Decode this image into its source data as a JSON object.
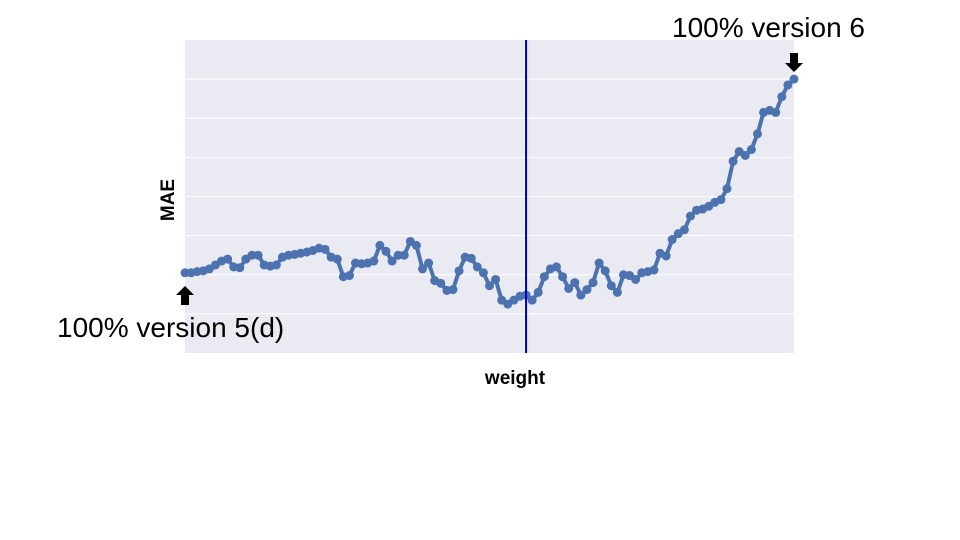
{
  "chart_data": {
    "type": "line",
    "title": "",
    "xlabel": "weight",
    "ylabel": "MAE",
    "grid": true,
    "legend": "none",
    "x_tick_labels_visible": false,
    "y_tick_labels_visible": false,
    "xlim": [
      0,
      100
    ],
    "ylim": [
      0,
      8
    ],
    "series": [
      {
        "color": "#4c72b0",
        "marker": "circle",
        "x": [
          0,
          1,
          2,
          3,
          4,
          5,
          6,
          7,
          8,
          9,
          10,
          11,
          12,
          13,
          14,
          15,
          16,
          17,
          18,
          19,
          20,
          21,
          22,
          23,
          24,
          25,
          26,
          27,
          28,
          29,
          30,
          31,
          32,
          33,
          34,
          35,
          36,
          37,
          38,
          39,
          40,
          41,
          42,
          43,
          44,
          45,
          46,
          47,
          48,
          49,
          50,
          51,
          52,
          53,
          54,
          55,
          56,
          57,
          58,
          59,
          60,
          61,
          62,
          63,
          64,
          65,
          66,
          67,
          68,
          69,
          70,
          71,
          72,
          73,
          74,
          75,
          76,
          77,
          78,
          79,
          80,
          81,
          82,
          83,
          84,
          85,
          86,
          87,
          88,
          89,
          90,
          91,
          92,
          93,
          94,
          95,
          96,
          97,
          98,
          99,
          100
        ],
        "y": [
          2.05,
          2.05,
          2.08,
          2.1,
          2.15,
          2.25,
          2.35,
          2.4,
          2.2,
          2.18,
          2.4,
          2.5,
          2.5,
          2.25,
          2.22,
          2.25,
          2.45,
          2.5,
          2.52,
          2.55,
          2.58,
          2.62,
          2.68,
          2.65,
          2.45,
          2.4,
          1.95,
          1.98,
          2.3,
          2.28,
          2.3,
          2.35,
          2.75,
          2.6,
          2.35,
          2.5,
          2.5,
          2.85,
          2.75,
          2.15,
          2.3,
          1.85,
          1.78,
          1.6,
          1.62,
          2.1,
          2.45,
          2.42,
          2.2,
          2.05,
          1.72,
          1.88,
          1.35,
          1.25,
          1.35,
          1.45,
          1.48,
          1.35,
          1.55,
          1.95,
          2.15,
          2.2,
          1.95,
          1.65,
          1.8,
          1.48,
          1.62,
          1.8,
          2.3,
          2.1,
          1.72,
          1.55,
          2.0,
          1.98,
          1.88,
          2.05,
          2.08,
          2.12,
          2.55,
          2.48,
          2.9,
          3.05,
          3.15,
          3.5,
          3.65,
          3.68,
          3.75,
          3.85,
          3.92,
          4.2,
          4.9,
          5.15,
          5.05,
          5.2,
          5.6,
          6.15,
          6.2,
          6.15,
          6.55,
          6.85,
          7.0
        ]
      }
    ],
    "vertical_line": {
      "x": 56,
      "color": "#0000cc"
    },
    "annotations": [
      {
        "text": "100% version 5(d)",
        "points_to": "x=0",
        "arrow": "up"
      },
      {
        "text": "100% version 6",
        "points_to": "x=100",
        "arrow": "down"
      }
    ]
  }
}
